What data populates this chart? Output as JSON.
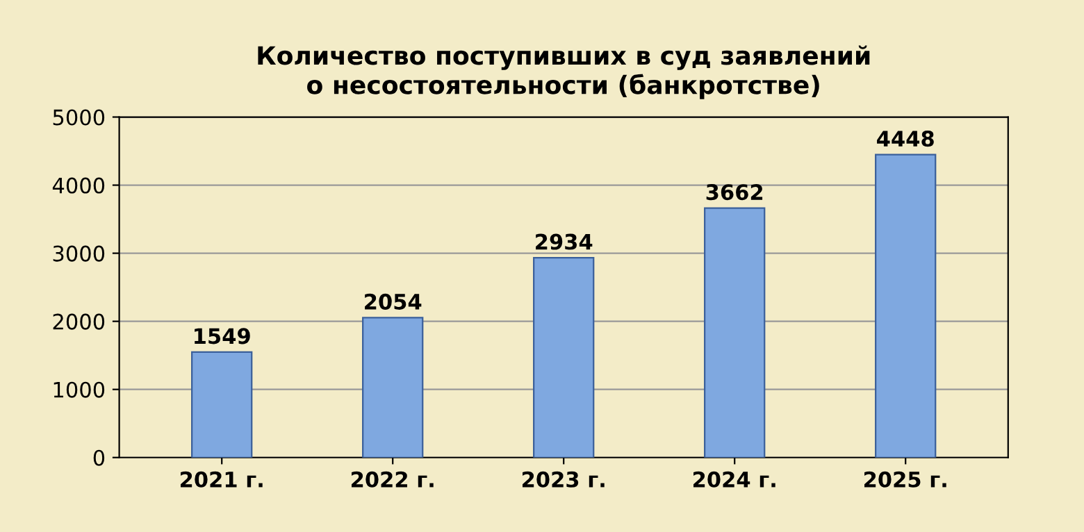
{
  "chart_data": {
    "type": "bar",
    "title": "Количество поступивших в суд заявлений\nо несостоятельности (банкротстве)",
    "categories": [
      "2021 г.",
      "2022 г.",
      "2023 г.",
      "2024 г.",
      "2025 г."
    ],
    "values": [
      1549,
      2054,
      2934,
      3662,
      4448
    ],
    "color": "#7fa8e0",
    "ylim": [
      0,
      5000
    ],
    "yticks": [
      0,
      1000,
      2000,
      3000,
      4000,
      5000
    ],
    "grid": "y",
    "data_labels": true
  }
}
